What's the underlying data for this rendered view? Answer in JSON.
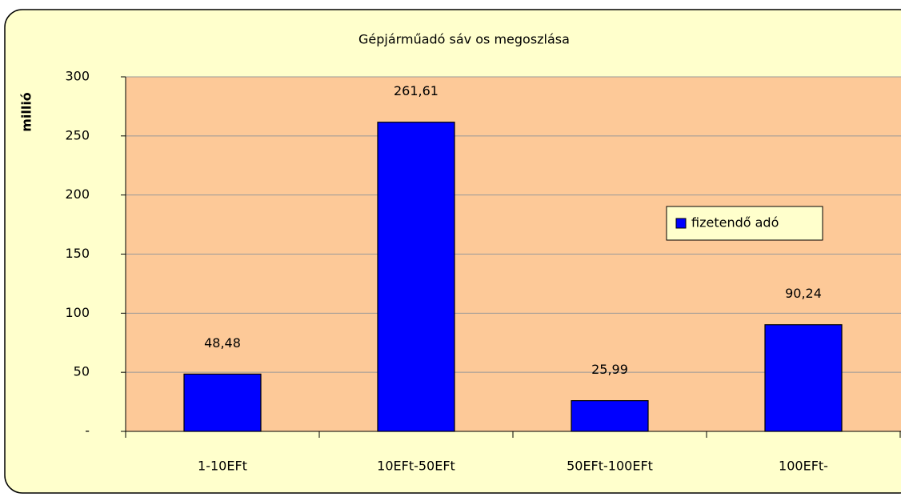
{
  "chart_data": {
    "type": "bar",
    "title": "Gépjárműadó sáv os megoszlása",
    "y_label": "millió",
    "categories": [
      "1-10EFt",
      "10EFt-50EFt",
      "50EFt-100EFt",
      "100EFt-"
    ],
    "series": [
      {
        "name": "fizetendő adó",
        "color": "#0000ff",
        "values": [
          48.48,
          261.61,
          25.99,
          90.24
        ],
        "value_labels": [
          "48,48",
          "261,61",
          "25,99",
          "90,24"
        ]
      }
    ],
    "ylim": [
      0,
      300
    ],
    "yticks": [
      {
        "value": 0,
        "label": "-"
      },
      50,
      100,
      150,
      200,
      250,
      300
    ],
    "grid": true,
    "legend": "right"
  }
}
